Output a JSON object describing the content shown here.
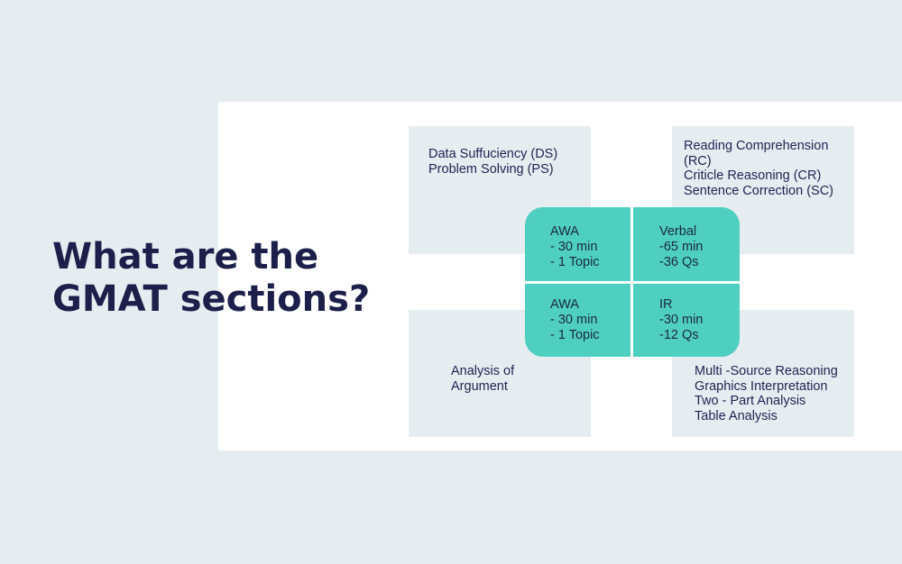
{
  "title": {
    "lines": [
      "What are the",
      "GMAT sections?"
    ]
  },
  "boxes": {
    "top_left": [
      "Data Suffuciency (DS)",
      "Problem Solving (PS)"
    ],
    "top_right": [
      "Reading Comprehension",
      "(RC)",
      "Criticle Reasoning (CR)",
      "Sentence Correction (SC)"
    ],
    "bottom_left": [
      "Analysis of",
      "Argument"
    ],
    "bottom_right": [
      "Multi -Source Reasoning",
      "Graphics Interpretation",
      "Two - Part Analysis",
      "Table Analysis"
    ]
  },
  "center": {
    "top_left": {
      "name": "AWA",
      "time": "- 30 min",
      "count": "- 1 Topic"
    },
    "top_right": {
      "name": "Verbal",
      "time": "-65 min",
      "count": "-36 Qs"
    },
    "bottom_left": {
      "name": "AWA",
      "time": "- 30 min",
      "count": "- 1 Topic"
    },
    "bottom_right": {
      "name": "IR",
      "time": "-30 min",
      "count": "-12 Qs"
    }
  },
  "colors": {
    "page_background": "#e6edf1",
    "panel_background": "#ffffff",
    "box_background": "#e6edf1",
    "accent_teal": "#4fcfc0",
    "title_text": "#1c1f4a"
  }
}
